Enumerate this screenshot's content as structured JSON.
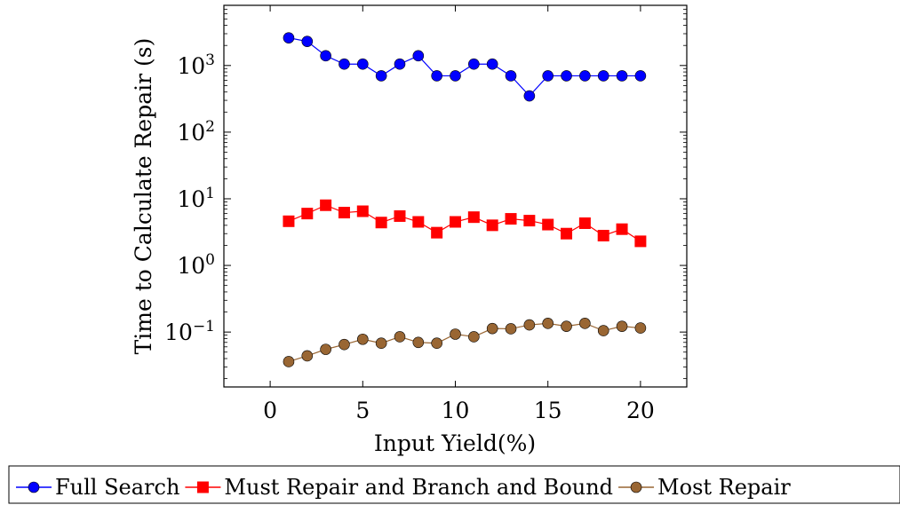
{
  "chart_data": {
    "type": "line",
    "y_scale": "log",
    "xlabel": "Input Yield(%)",
    "ylabel": "Time to Calculate Repair (s)",
    "xlim": [
      -2.5,
      22.5
    ],
    "ylim": [
      0.015,
      8000
    ],
    "x_ticks": [
      "0",
      "5",
      "10",
      "15",
      "20"
    ],
    "y_ticks": [
      {
        "base": "10",
        "exp": "−1",
        "value": 0.1
      },
      {
        "base": "10",
        "exp": "0",
        "value": 1
      },
      {
        "base": "10",
        "exp": "1",
        "value": 10
      },
      {
        "base": "10",
        "exp": "2",
        "value": 100
      },
      {
        "base": "10",
        "exp": "3",
        "value": 1000
      }
    ],
    "x": [
      1,
      2,
      3,
      4,
      5,
      6,
      7,
      8,
      9,
      10,
      11,
      12,
      13,
      14,
      15,
      16,
      17,
      18,
      19,
      20
    ],
    "legend_position": "bottom",
    "series": [
      {
        "name": "Full Search",
        "color": "#0000ff",
        "marker": "circle",
        "values": [
          2600,
          2300,
          1400,
          1050,
          1050,
          700,
          1050,
          1400,
          700,
          700,
          1050,
          1050,
          700,
          350,
          700,
          700,
          700,
          700,
          700,
          700
        ]
      },
      {
        "name": "Must Repair and Branch and Bound",
        "color": "#ff0000",
        "marker": "square",
        "values": [
          4.6,
          6.0,
          8.0,
          6.2,
          6.5,
          4.4,
          5.5,
          4.5,
          3.1,
          4.5,
          5.3,
          4.0,
          5.0,
          4.7,
          4.1,
          3.0,
          4.3,
          2.8,
          3.5,
          2.3
        ]
      },
      {
        "name": "Most Repair",
        "color": "#996633",
        "marker": "circle",
        "values": [
          0.036,
          0.044,
          0.055,
          0.065,
          0.078,
          0.068,
          0.085,
          0.07,
          0.068,
          0.093,
          0.085,
          0.113,
          0.112,
          0.128,
          0.135,
          0.122,
          0.135,
          0.105,
          0.122,
          0.115
        ]
      }
    ]
  }
}
